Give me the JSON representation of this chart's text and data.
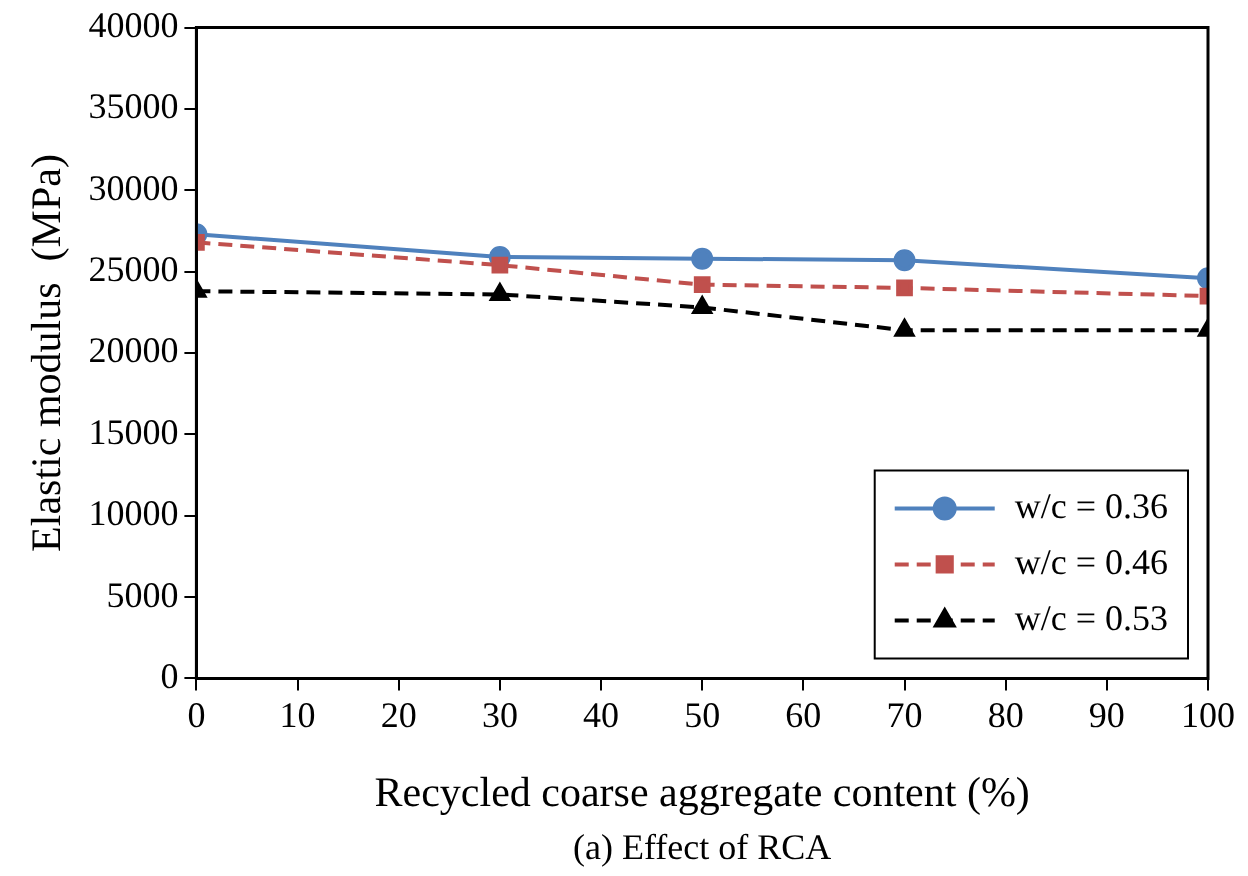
{
  "chart_data": {
    "type": "line",
    "xlabel": "Recycled coarse aggregate content (%)",
    "ylabel": "Elastic modulus  (MPa)",
    "annotations": [
      "(a) Effect of RCA"
    ],
    "x": [
      0,
      30,
      50,
      70,
      100
    ],
    "series": [
      {
        "name": "w/c = 0.36",
        "color": "#4f81bd",
        "marker": "circle",
        "line_style": "solid",
        "values": [
          27300,
          25900,
          25800,
          25700,
          24600
        ]
      },
      {
        "name": "w/c = 0.46",
        "color": "#c0504d",
        "marker": "square",
        "line_style": "dashed",
        "values": [
          26800,
          25400,
          24200,
          24000,
          23500
        ]
      },
      {
        "name": "w/c = 0.53",
        "color": "#000000",
        "marker": "triangle",
        "line_style": "dashed",
        "values": [
          23800,
          23600,
          22800,
          21400,
          21400
        ]
      }
    ],
    "xlim": [
      0,
      100
    ],
    "xticks": [
      0,
      10,
      20,
      30,
      40,
      50,
      60,
      70,
      80,
      90,
      100
    ],
    "ylim": [
      0,
      40000
    ],
    "yticks": [
      0,
      5000,
      10000,
      15000,
      20000,
      25000,
      30000,
      35000,
      40000
    ],
    "grid": false,
    "legend": "bottom right"
  }
}
